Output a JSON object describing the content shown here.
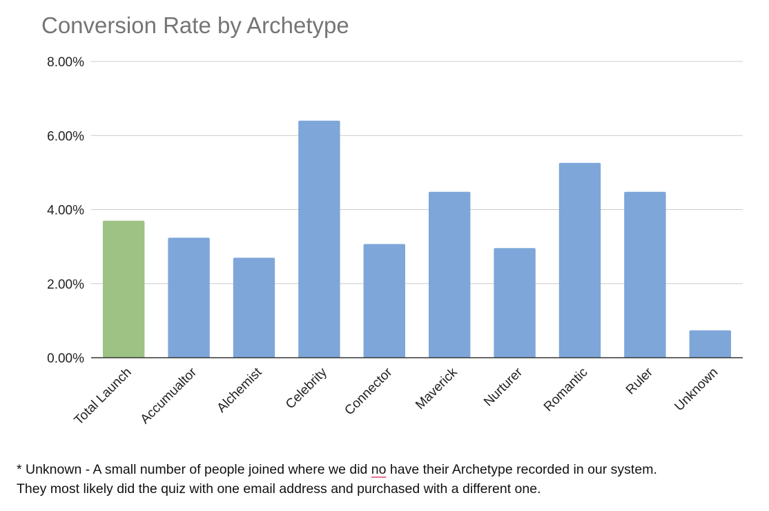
{
  "chart_data": {
    "type": "bar",
    "title": "Conversion Rate by Archetype",
    "xlabel": "",
    "ylabel": "",
    "ylim": [
      0,
      0.08
    ],
    "yticks": [
      0,
      0.02,
      0.04,
      0.06,
      0.08
    ],
    "ytick_labels": [
      "0.00%",
      "2.00%",
      "4.00%",
      "6.00%",
      "8.00%"
    ],
    "grid": true,
    "legend": "none",
    "categories": [
      "Total Launch",
      "Accumualtor",
      "Alchemist",
      "Celebrity",
      "Connector",
      "Maverick",
      "Nurturer",
      "Romantic",
      "Ruler",
      "Unknown"
    ],
    "values": [
      0.037,
      0.0324,
      0.027,
      0.064,
      0.0307,
      0.0448,
      0.0296,
      0.0526,
      0.0448,
      0.0074
    ],
    "colors": [
      "#9dc283",
      "#7ea6d9",
      "#7ea6d9",
      "#7ea6d9",
      "#7ea6d9",
      "#7ea6d9",
      "#7ea6d9",
      "#7ea6d9",
      "#7ea6d9",
      "#7ea6d9"
    ]
  },
  "footnote": {
    "line1_before": "* Unknown - A small number of people joined where we did ",
    "line1_marked": "no",
    "line1_after": " have their Archetype recorded in our system.",
    "line2": "They most likely did the quiz with one email address and purchased with a different one."
  }
}
